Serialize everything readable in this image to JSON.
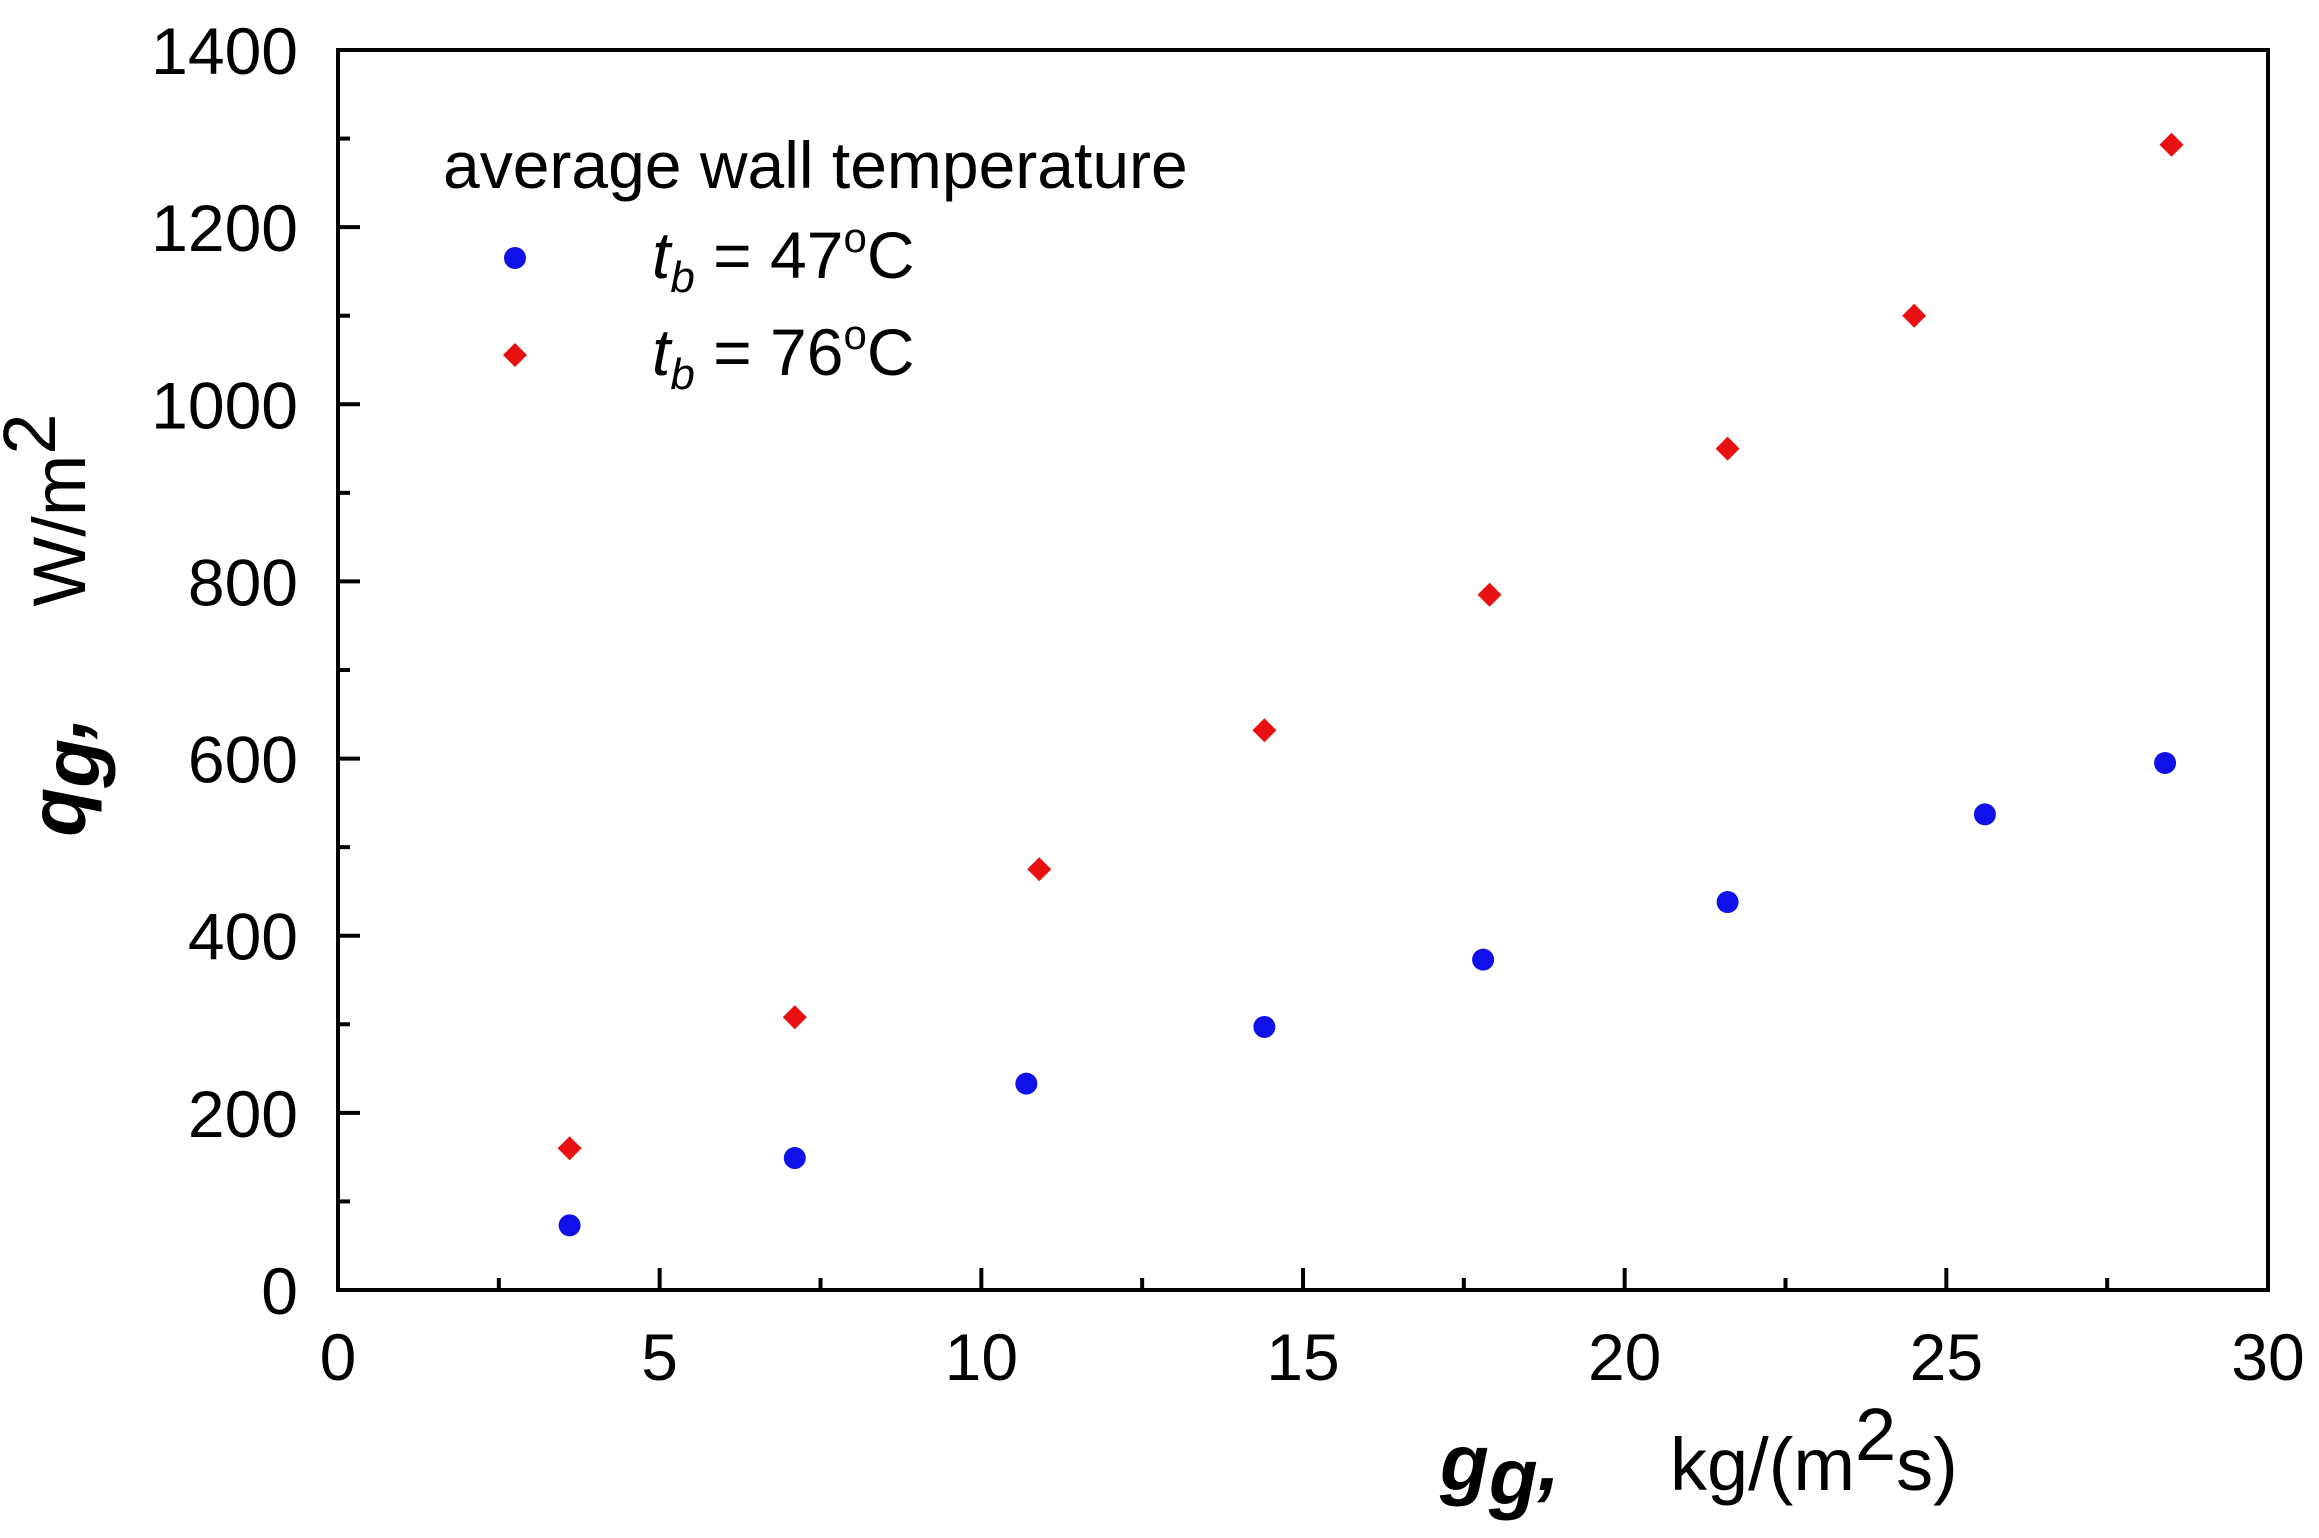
{
  "chart_data": {
    "type": "scatter",
    "title": "",
    "xlabel": {
      "symbol": "g",
      "subscript": "g",
      "separator": ",",
      "unit": "kg/(m",
      "unit_sup": "2",
      "unit_end": "s)"
    },
    "ylabel": {
      "symbol": "q",
      "subscript": "g",
      "separator": ",",
      "unit": "W/m",
      "unit_sup": "2"
    },
    "xlim": [
      0,
      30
    ],
    "ylim": [
      0,
      1400
    ],
    "xticks": [
      0,
      5,
      10,
      15,
      20,
      25,
      30
    ],
    "yticks": [
      0,
      200,
      400,
      600,
      800,
      1000,
      1200,
      1400
    ],
    "grid": false,
    "legend": {
      "title": "average  wall temperature",
      "placement": "top-left"
    },
    "series": [
      {
        "name": "t_b = 47oC",
        "label_symbol": "t",
        "label_sub": "b",
        "label_rest": " = 47",
        "label_sup": "o",
        "label_end": "C",
        "marker": "circle",
        "color": "#1010e8",
        "x": [
          3.6,
          7.1,
          10.7,
          14.4,
          17.8,
          21.6,
          25.6,
          28.4
        ],
        "y": [
          73,
          149,
          233,
          297,
          373,
          438,
          537,
          595
        ]
      },
      {
        "name": "t_b = 76oC",
        "label_symbol": "t",
        "label_sub": "b",
        "label_rest": " = 76",
        "label_sup": "o",
        "label_end": "C",
        "marker": "diamond",
        "color": "#e81010",
        "x": [
          3.6,
          7.1,
          10.9,
          14.4,
          17.9,
          21.6,
          24.5,
          28.5
        ],
        "y": [
          160,
          308,
          475,
          632,
          785,
          950,
          1100,
          1293
        ]
      }
    ]
  }
}
